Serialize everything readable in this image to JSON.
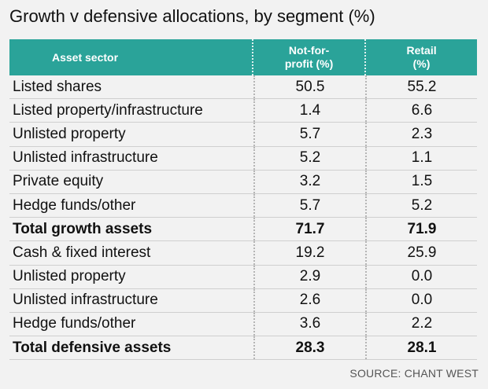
{
  "title": "Growth v defensive allocations, by segment (%)",
  "source": "SOURCE: CHANT WEST",
  "colors": {
    "header_bg": "#2aa399",
    "header_text": "#ffffff",
    "background": "#f2f2f2"
  },
  "chart_data": {
    "type": "table",
    "title": "Growth v defensive allocations, by segment (%)",
    "columns": [
      "Asset sector",
      "Not-for-profit (%)",
      "Retail (%)"
    ],
    "header_lines": {
      "col1": [
        "Asset sector"
      ],
      "col2": [
        "Not-for-",
        "profit (%)"
      ],
      "col3": [
        "Retail",
        "(%)"
      ]
    },
    "rows": [
      {
        "sector": "Listed shares",
        "nfp": "50.5",
        "retail": "55.2",
        "bold": false
      },
      {
        "sector": "Listed property/infrastructure",
        "nfp": "1.4",
        "retail": "6.6",
        "bold": false
      },
      {
        "sector": "Unlisted property",
        "nfp": "5.7",
        "retail": "2.3",
        "bold": false
      },
      {
        "sector": "Unlisted infrastructure",
        "nfp": "5.2",
        "retail": "1.1",
        "bold": false
      },
      {
        "sector": "Private equity",
        "nfp": "3.2",
        "retail": "1.5",
        "bold": false
      },
      {
        "sector": "Hedge funds/other",
        "nfp": "5.7",
        "retail": "5.2",
        "bold": false
      },
      {
        "sector": "Total growth assets",
        "nfp": "71.7",
        "retail": "71.9",
        "bold": true
      },
      {
        "sector": "Cash & fixed interest",
        "nfp": "19.2",
        "retail": "25.9",
        "bold": false
      },
      {
        "sector": "Unlisted property",
        "nfp": "2.9",
        "retail": "0.0",
        "bold": false
      },
      {
        "sector": "Unlisted infrastructure",
        "nfp": "2.6",
        "retail": "0.0",
        "bold": false
      },
      {
        "sector": "Hedge funds/other",
        "nfp": "3.6",
        "retail": "2.2",
        "bold": false
      },
      {
        "sector": "Total defensive assets",
        "nfp": "28.3",
        "retail": "28.1",
        "bold": true
      }
    ]
  }
}
